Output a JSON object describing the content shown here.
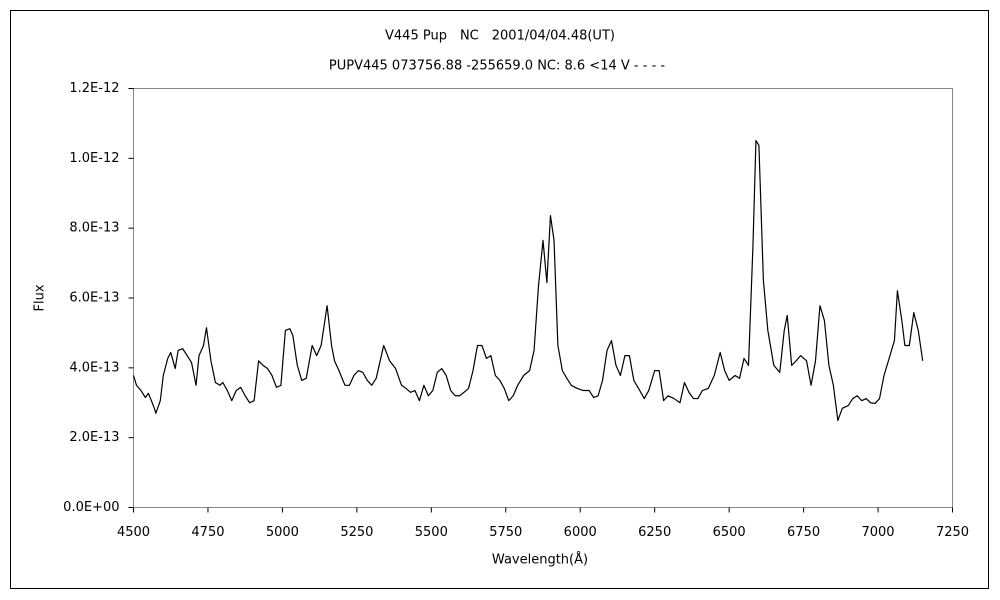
{
  "chart_data": {
    "type": "line",
    "title": "V445 Pup　NC　2001/04/04.48(UT)",
    "subtitle": "PUPV445 073756.88 -255659.0 NC: 8.6 <14 V - - - -",
    "x_label": "Wavelength(Å)",
    "y_label": "Flux",
    "grid": false,
    "xlim": [
      4500,
      7250
    ],
    "xticks": [
      4500,
      4750,
      5000,
      5250,
      5500,
      5750,
      6000,
      6250,
      6500,
      6750,
      7000,
      7250
    ],
    "ylim": [
      0,
      1.2e-12
    ],
    "yticks": [
      {
        "value": 0,
        "label": "0.0E+00"
      },
      {
        "value": 2e-13,
        "label": "2.0E-13"
      },
      {
        "value": 4e-13,
        "label": "4.0E-13"
      },
      {
        "value": 6e-13,
        "label": "6.0E-13"
      },
      {
        "value": 8e-13,
        "label": "8.0E-13"
      },
      {
        "value": 1e-12,
        "label": "1.0E-12"
      },
      {
        "value": 1.2e-12,
        "label": "1.2E-12"
      }
    ],
    "series": [
      {
        "color": "#000000",
        "x": [
          4500,
          4510,
          4525,
          4540,
          4550,
          4560,
          4570,
          4575,
          4590,
          4600,
          4615,
          4625,
          4640,
          4650,
          4665,
          4680,
          4695,
          4710,
          4720,
          4735,
          4745,
          4760,
          4775,
          4790,
          4800,
          4815,
          4830,
          4845,
          4860,
          4875,
          4890,
          4905,
          4920,
          4935,
          4950,
          4965,
          4980,
          4995,
          5010,
          5025,
          5035,
          5050,
          5065,
          5080,
          5100,
          5115,
          5130,
          5150,
          5165,
          5175,
          5190,
          5210,
          5225,
          5240,
          5255,
          5270,
          5285,
          5300,
          5315,
          5340,
          5360,
          5380,
          5400,
          5415,
          5430,
          5445,
          5460,
          5475,
          5490,
          5505,
          5520,
          5535,
          5550,
          5565,
          5580,
          5595,
          5610,
          5625,
          5640,
          5655,
          5670,
          5685,
          5700,
          5715,
          5730,
          5745,
          5760,
          5775,
          5790,
          5810,
          5830,
          5845,
          5860,
          5875,
          5888,
          5900,
          5912,
          5925,
          5940,
          5955,
          5970,
          5990,
          6010,
          6030,
          6045,
          6060,
          6075,
          6090,
          6105,
          6120,
          6135,
          6150,
          6165,
          6180,
          6200,
          6215,
          6230,
          6250,
          6265,
          6280,
          6295,
          6315,
          6335,
          6350,
          6365,
          6380,
          6395,
          6410,
          6430,
          6450,
          6470,
          6485,
          6500,
          6520,
          6535,
          6550,
          6565,
          6580,
          6590,
          6600,
          6615,
          6630,
          6650,
          6670,
          6685,
          6695,
          6710,
          6725,
          6740,
          6760,
          6775,
          6790,
          6805,
          6820,
          6835,
          6850,
          6865,
          6880,
          6900,
          6915,
          6930,
          6945,
          6960,
          6975,
          6990,
          7005,
          7020,
          7040,
          7055,
          7065,
          7080,
          7090,
          7105,
          7120,
          7135,
          7150
        ],
        "values": [
          3.78e-13,
          3.5e-13,
          3.35e-13,
          3.15e-13,
          3.27e-13,
          3.06e-13,
          2.84e-13,
          2.7e-13,
          3.06e-13,
          3.78e-13,
          4.27e-13,
          4.44e-13,
          3.98e-13,
          4.5e-13,
          4.55e-13,
          4.35e-13,
          4.15e-13,
          3.5e-13,
          4.35e-13,
          4.64e-13,
          5.15e-13,
          4.2e-13,
          3.58e-13,
          3.5e-13,
          3.58e-13,
          3.35e-13,
          3.06e-13,
          3.35e-13,
          3.44e-13,
          3.2e-13,
          3e-13,
          3.06e-13,
          4.2e-13,
          4.07e-13,
          3.98e-13,
          3.78e-13,
          3.44e-13,
          3.5e-13,
          5.07e-13,
          5.12e-13,
          4.93e-13,
          4.07e-13,
          3.64e-13,
          3.7e-13,
          4.64e-13,
          4.35e-13,
          4.64e-13,
          5.78e-13,
          4.64e-13,
          4.2e-13,
          3.92e-13,
          3.5e-13,
          3.5e-13,
          3.78e-13,
          3.92e-13,
          3.87e-13,
          3.64e-13,
          3.5e-13,
          3.7e-13,
          4.64e-13,
          4.2e-13,
          3.98e-13,
          3.5e-13,
          3.41e-13,
          3.3e-13,
          3.35e-13,
          3.06e-13,
          3.5e-13,
          3.2e-13,
          3.35e-13,
          3.87e-13,
          3.98e-13,
          3.78e-13,
          3.35e-13,
          3.2e-13,
          3.2e-13,
          3.3e-13,
          3.41e-13,
          3.92e-13,
          4.64e-13,
          4.64e-13,
          4.27e-13,
          4.35e-13,
          3.78e-13,
          3.64e-13,
          3.41e-13,
          3.06e-13,
          3.2e-13,
          3.5e-13,
          3.78e-13,
          3.92e-13,
          4.5e-13,
          6.36e-13,
          7.65e-13,
          6.44e-13,
          8.36e-13,
          7.65e-13,
          4.64e-13,
          3.92e-13,
          3.7e-13,
          3.5e-13,
          3.41e-13,
          3.35e-13,
          3.35e-13,
          3.15e-13,
          3.2e-13,
          3.64e-13,
          4.5e-13,
          4.78e-13,
          4.07e-13,
          3.78e-13,
          4.35e-13,
          4.35e-13,
          3.64e-13,
          3.35e-13,
          3.12e-13,
          3.35e-13,
          3.92e-13,
          3.92e-13,
          3.06e-13,
          3.2e-13,
          3.12e-13,
          3e-13,
          3.58e-13,
          3.3e-13,
          3.12e-13,
          3.12e-13,
          3.35e-13,
          3.41e-13,
          3.78e-13,
          4.44e-13,
          3.92e-13,
          3.64e-13,
          3.78e-13,
          3.7e-13,
          4.27e-13,
          4.07e-13,
          7.5e-13,
          1.051e-12,
          1.037e-12,
          6.5e-13,
          5.07e-13,
          4.07e-13,
          3.87e-13,
          5.07e-13,
          5.5e-13,
          4.07e-13,
          4.2e-13,
          4.35e-13,
          4.2e-13,
          3.5e-13,
          4.2e-13,
          5.78e-13,
          5.35e-13,
          4.07e-13,
          3.5e-13,
          2.49e-13,
          2.84e-13,
          2.92e-13,
          3.12e-13,
          3.2e-13,
          3.06e-13,
          3.12e-13,
          3e-13,
          2.98e-13,
          3.12e-13,
          3.78e-13,
          4.35e-13,
          4.78e-13,
          6.21e-13,
          5.35e-13,
          4.64e-13,
          4.64e-13,
          5.58e-13,
          5.07e-13,
          4.2e-13
        ]
      }
    ]
  }
}
